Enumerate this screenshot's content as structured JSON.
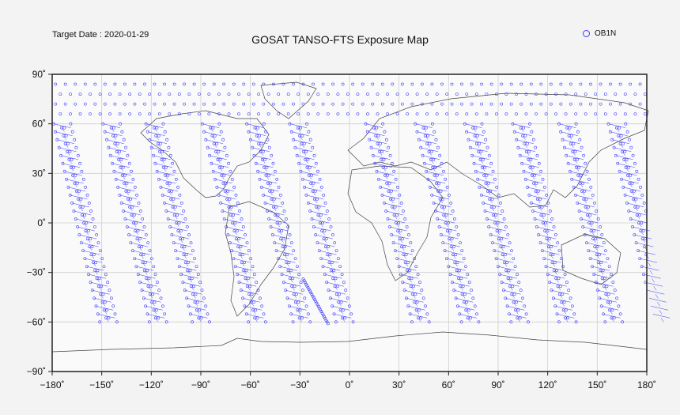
{
  "header": {
    "target_date": "Target Date : 2020-01-29",
    "title": "GOSAT TANSO-FTS Exposure Map"
  },
  "legend": {
    "label": "OB1N",
    "color": "#3a3aff"
  },
  "colors": {
    "points": "#3a3aff",
    "coastline": "#444444",
    "grid": "#cfcfcf",
    "frame": "#222222"
  },
  "chart_data": {
    "type": "scatter",
    "title": "GOSAT TANSO-FTS Exposure Map",
    "xlim": [
      -180,
      180
    ],
    "ylim": [
      -90,
      90
    ],
    "x_ticks": [
      -180,
      -150,
      -120,
      -90,
      -60,
      -30,
      0,
      30,
      60,
      90,
      120,
      150,
      180
    ],
    "y_ticks": [
      -90,
      -60,
      -30,
      0,
      30,
      60,
      90
    ],
    "x_tick_labels": [
      "−180˚",
      "−150˚",
      "−120˚",
      "−90˚",
      "−60˚",
      "−30˚",
      "0˚",
      "30˚",
      "60˚",
      "90˚",
      "120˚",
      "150˚",
      "180˚"
    ],
    "y_tick_labels": [
      "−90˚",
      "−60˚",
      "−30˚",
      "0˚",
      "30˚",
      "60˚",
      "90˚"
    ],
    "grid": true,
    "series": [
      {
        "name": "OB1N",
        "swaths_start_lon_at_60N": [
          -174,
          -144,
          -118,
          -84,
          -57,
          -31,
          15,
          45,
          75,
          104,
          132,
          162
        ],
        "latitude_range": [
          -60,
          60
        ],
        "longitude_drift_per_30_deg_south": 7,
        "special_track": {
          "lon": [
            -28,
            -13
          ],
          "lat": [
            -34,
            -61
          ]
        }
      }
    ]
  }
}
